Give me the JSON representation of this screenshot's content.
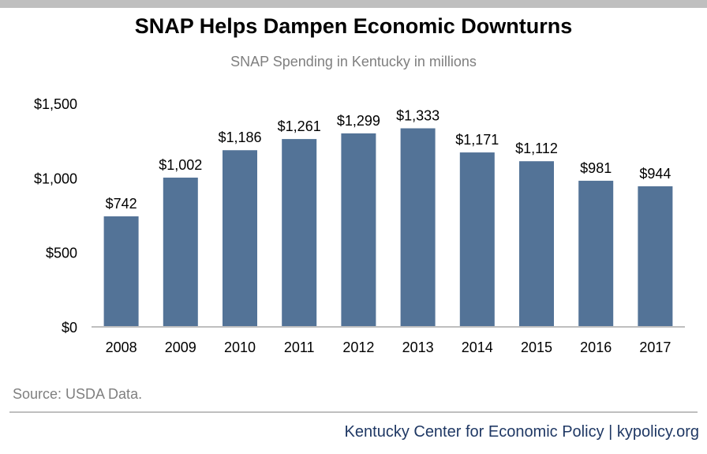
{
  "header": {
    "title": "SNAP Helps Dampen Economic Downturns",
    "subtitle": "SNAP Spending in Kentucky in millions"
  },
  "source": "Source: USDA Data.",
  "footer": "Kentucky Center for Economic Policy | kypolicy.org",
  "colors": {
    "bar": "#537397",
    "axis": "#bfbfbf",
    "text": "#000000",
    "footer": "#1f3864"
  },
  "chart_data": {
    "type": "bar",
    "title": "SNAP Helps Dampen Economic Downturns",
    "subtitle": "SNAP Spending in Kentucky in millions",
    "categories": [
      "2008",
      "2009",
      "2010",
      "2011",
      "2012",
      "2013",
      "2014",
      "2015",
      "2016",
      "2017"
    ],
    "values": [
      742,
      1002,
      1186,
      1261,
      1299,
      1333,
      1171,
      1112,
      981,
      944
    ],
    "value_labels": [
      "$742",
      "$1,002",
      "$1,186",
      "$1,261",
      "$1,299",
      "$1,333",
      "$1,171",
      "$1,112",
      "$981",
      "$944"
    ],
    "yticks": [
      0,
      500,
      1000,
      1500
    ],
    "ytick_labels": [
      "$0",
      "$500",
      "$1,000",
      "$1,500"
    ],
    "ylim": [
      0,
      1500
    ],
    "grid": false,
    "legend": "none"
  }
}
